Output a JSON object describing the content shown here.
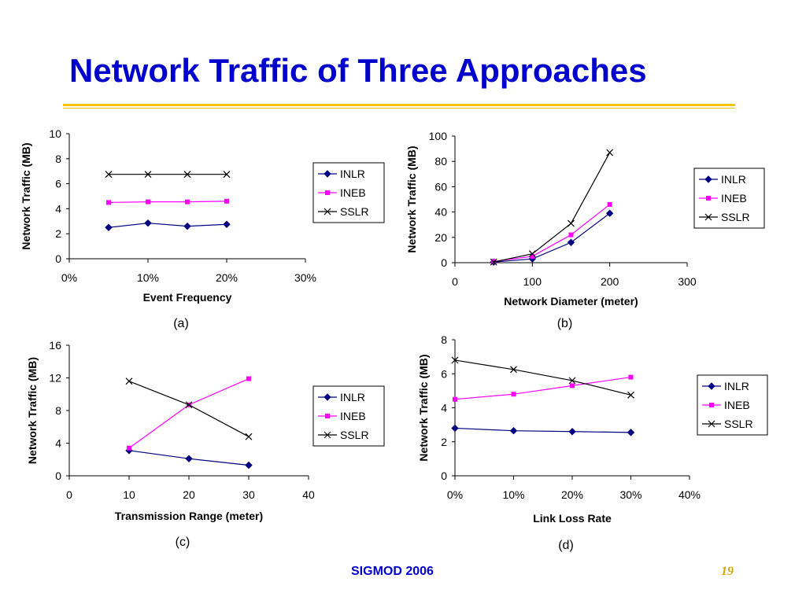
{
  "slide": {
    "title": "Network Traffic of Three Approaches",
    "footer_left": "SIGMOD 2006",
    "page_number": "19"
  },
  "colors": {
    "title": "#0000cc",
    "rule": "#f5c400",
    "INLR": "#000080",
    "INEB": "#ff00ff",
    "SSLR": "#000000"
  },
  "chart_data": [
    {
      "type": "line",
      "caption": "(a)",
      "xlabel": "Event Frequency",
      "ylabel": "Network Traffic (MB)",
      "xlim": [
        0,
        30
      ],
      "ylim": [
        0,
        10
      ],
      "xticks": [
        0,
        10,
        20,
        30
      ],
      "yticks": [
        0,
        2,
        4,
        6,
        8,
        10
      ],
      "xtick_labels": [
        "0%",
        "10%",
        "20%",
        "30%"
      ],
      "ytick_labels": [
        "0",
        "2",
        "4",
        "6",
        "8",
        "10"
      ],
      "legend": "right",
      "series": [
        {
          "name": "INLR",
          "marker": "diamond",
          "x": [
            5,
            10,
            15,
            20
          ],
          "y": [
            2.5,
            2.85,
            2.6,
            2.75
          ]
        },
        {
          "name": "INEB",
          "marker": "square",
          "x": [
            5,
            10,
            15,
            20
          ],
          "y": [
            4.5,
            4.55,
            4.55,
            4.6
          ]
        },
        {
          "name": "SSLR",
          "marker": "x",
          "x": [
            5,
            10,
            15,
            20
          ],
          "y": [
            6.75,
            6.75,
            6.75,
            6.75
          ]
        }
      ]
    },
    {
      "type": "line",
      "caption": "(b)",
      "xlabel": "Network Diameter (meter)",
      "ylabel": "Network Traffic (MB)",
      "xlim": [
        0,
        300
      ],
      "ylim": [
        0,
        100
      ],
      "xticks": [
        0,
        100,
        200,
        300
      ],
      "yticks": [
        0,
        20,
        40,
        60,
        80,
        100
      ],
      "xtick_labels": [
        "0",
        "100",
        "200",
        "300"
      ],
      "ytick_labels": [
        "0",
        "20",
        "40",
        "60",
        "80",
        "100"
      ],
      "legend": "right",
      "series": [
        {
          "name": "INLR",
          "marker": "diamond",
          "x": [
            50,
            100,
            150,
            200
          ],
          "y": [
            0.5,
            3,
            16,
            39
          ]
        },
        {
          "name": "INEB",
          "marker": "square",
          "x": [
            50,
            100,
            150,
            200
          ],
          "y": [
            1,
            5,
            22,
            46
          ]
        },
        {
          "name": "SSLR",
          "marker": "x",
          "x": [
            50,
            100,
            150,
            200
          ],
          "y": [
            0.5,
            7,
            31,
            87
          ]
        }
      ]
    },
    {
      "type": "line",
      "caption": "(c)",
      "xlabel": "Transmission Range (meter)",
      "ylabel": "Network Traffic (MB)",
      "xlim": [
        0,
        40
      ],
      "ylim": [
        0,
        16
      ],
      "xticks": [
        0,
        10,
        20,
        30,
        40
      ],
      "yticks": [
        0,
        4,
        8,
        12,
        16
      ],
      "xtick_labels": [
        "0",
        "10",
        "20",
        "30",
        "40"
      ],
      "ytick_labels": [
        "0",
        "4",
        "8",
        "12",
        "16"
      ],
      "legend": "right",
      "series": [
        {
          "name": "INLR",
          "marker": "diamond",
          "x": [
            10,
            20,
            30
          ],
          "y": [
            3.1,
            2.1,
            1.3
          ]
        },
        {
          "name": "INEB",
          "marker": "square",
          "x": [
            10,
            20,
            30
          ],
          "y": [
            3.4,
            8.7,
            11.9
          ]
        },
        {
          "name": "SSLR",
          "marker": "x",
          "x": [
            10,
            20,
            30
          ],
          "y": [
            11.6,
            8.7,
            4.8
          ]
        }
      ]
    },
    {
      "type": "line",
      "caption": "(d)",
      "xlabel": "Link Loss Rate",
      "ylabel": "Network Traffic (MB)",
      "xlim": [
        0,
        40
      ],
      "ylim": [
        0,
        8
      ],
      "xticks": [
        0,
        10,
        20,
        30,
        40
      ],
      "yticks": [
        0,
        2,
        4,
        6,
        8
      ],
      "xtick_labels": [
        "0%",
        "10%",
        "20%",
        "30%",
        "40%"
      ],
      "ytick_labels": [
        "0",
        "2",
        "4",
        "6",
        "8"
      ],
      "legend": "right",
      "series": [
        {
          "name": "INLR",
          "marker": "diamond",
          "x": [
            0,
            10,
            20,
            30
          ],
          "y": [
            2.8,
            2.65,
            2.6,
            2.55
          ]
        },
        {
          "name": "INEB",
          "marker": "square",
          "x": [
            0,
            10,
            20,
            30
          ],
          "y": [
            4.5,
            4.8,
            5.3,
            5.8
          ]
        },
        {
          "name": "SSLR",
          "marker": "x",
          "x": [
            0,
            10,
            20,
            30
          ],
          "y": [
            6.8,
            6.25,
            5.6,
            4.75
          ]
        }
      ]
    }
  ]
}
